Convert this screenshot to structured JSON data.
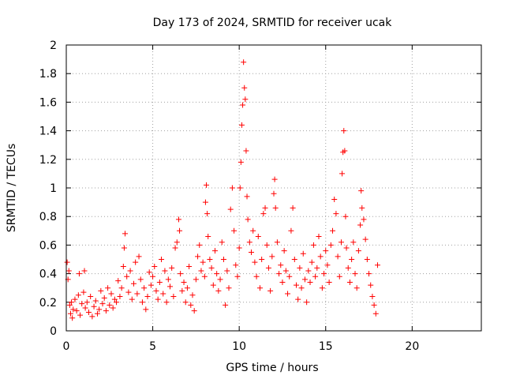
{
  "chart_data": {
    "type": "scatter",
    "title": "Day 173 of 2024, SRMTID for receiver ucak",
    "xlabel": "GPS time / hours",
    "ylabel": "SRMTID / TECUs",
    "xlim": [
      0,
      24
    ],
    "ylim": [
      0,
      2
    ],
    "xticks": [
      0,
      5,
      10,
      15,
      20
    ],
    "yticks": [
      0,
      0.2,
      0.4,
      0.6,
      0.8,
      1,
      1.2,
      1.4,
      1.6,
      1.8,
      2
    ],
    "xtick_labels": [
      "0",
      "5",
      "10",
      "15",
      "20"
    ],
    "ytick_labels": [
      "0",
      "0.2",
      "0.4",
      "0.6",
      "0.8",
      "1",
      "1.2",
      "1.4",
      "1.6",
      "1.8",
      "2"
    ],
    "grid": true,
    "marker": "+",
    "marker_color": "#ff0000",
    "series": [
      {
        "name": "SRMTID",
        "points": [
          [
            0.05,
            0.48
          ],
          [
            0.1,
            0.36
          ],
          [
            0.15,
            0.42
          ],
          [
            0.2,
            0.18
          ],
          [
            0.25,
            0.12
          ],
          [
            0.3,
            0.2
          ],
          [
            0.35,
            0.09
          ],
          [
            0.4,
            0.15
          ],
          [
            0.5,
            0.22
          ],
          [
            0.6,
            0.14
          ],
          [
            0.7,
            0.25
          ],
          [
            0.75,
            0.4
          ],
          [
            0.8,
            0.11
          ],
          [
            0.9,
            0.19
          ],
          [
            1.0,
            0.27
          ],
          [
            1.05,
            0.42
          ],
          [
            1.1,
            0.16
          ],
          [
            1.2,
            0.2
          ],
          [
            1.3,
            0.13
          ],
          [
            1.4,
            0.24
          ],
          [
            1.5,
            0.1
          ],
          [
            1.6,
            0.17
          ],
          [
            1.7,
            0.21
          ],
          [
            1.8,
            0.12
          ],
          [
            1.9,
            0.15
          ],
          [
            2.0,
            0.28
          ],
          [
            2.1,
            0.19
          ],
          [
            2.2,
            0.23
          ],
          [
            2.3,
            0.14
          ],
          [
            2.4,
            0.3
          ],
          [
            2.5,
            0.18
          ],
          [
            2.6,
            0.26
          ],
          [
            2.7,
            0.16
          ],
          [
            2.8,
            0.22
          ],
          [
            2.9,
            0.2
          ],
          [
            3.0,
            0.35
          ],
          [
            3.1,
            0.24
          ],
          [
            3.2,
            0.3
          ],
          [
            3.3,
            0.45
          ],
          [
            3.35,
            0.58
          ],
          [
            3.4,
            0.68
          ],
          [
            3.5,
            0.38
          ],
          [
            3.6,
            0.27
          ],
          [
            3.7,
            0.42
          ],
          [
            3.8,
            0.22
          ],
          [
            3.9,
            0.33
          ],
          [
            4.0,
            0.48
          ],
          [
            4.1,
            0.26
          ],
          [
            4.2,
            0.52
          ],
          [
            4.3,
            0.36
          ],
          [
            4.4,
            0.2
          ],
          [
            4.5,
            0.3
          ],
          [
            4.6,
            0.15
          ],
          [
            4.7,
            0.24
          ],
          [
            4.8,
            0.41
          ],
          [
            4.9,
            0.32
          ],
          [
            5.0,
            0.38
          ],
          [
            5.1,
            0.45
          ],
          [
            5.2,
            0.28
          ],
          [
            5.3,
            0.22
          ],
          [
            5.4,
            0.34
          ],
          [
            5.5,
            0.5
          ],
          [
            5.6,
            0.26
          ],
          [
            5.7,
            0.42
          ],
          [
            5.8,
            0.2
          ],
          [
            5.9,
            0.36
          ],
          [
            6.0,
            0.31
          ],
          [
            6.1,
            0.44
          ],
          [
            6.2,
            0.24
          ],
          [
            6.3,
            0.58
          ],
          [
            6.4,
            0.62
          ],
          [
            6.5,
            0.78
          ],
          [
            6.55,
            0.7
          ],
          [
            6.6,
            0.4
          ],
          [
            6.7,
            0.28
          ],
          [
            6.8,
            0.34
          ],
          [
            6.9,
            0.2
          ],
          [
            7.0,
            0.3
          ],
          [
            7.1,
            0.45
          ],
          [
            7.2,
            0.18
          ],
          [
            7.3,
            0.25
          ],
          [
            7.4,
            0.14
          ],
          [
            7.5,
            0.36
          ],
          [
            7.6,
            0.52
          ],
          [
            7.7,
            0.6
          ],
          [
            7.8,
            0.42
          ],
          [
            7.9,
            0.48
          ],
          [
            8.0,
            0.38
          ],
          [
            8.05,
            0.9
          ],
          [
            8.1,
            1.02
          ],
          [
            8.15,
            0.82
          ],
          [
            8.2,
            0.66
          ],
          [
            8.3,
            0.5
          ],
          [
            8.4,
            0.44
          ],
          [
            8.5,
            0.32
          ],
          [
            8.6,
            0.56
          ],
          [
            8.7,
            0.4
          ],
          [
            8.8,
            0.28
          ],
          [
            8.9,
            0.36
          ],
          [
            9.0,
            0.62
          ],
          [
            9.1,
            0.5
          ],
          [
            9.2,
            0.18
          ],
          [
            9.3,
            0.42
          ],
          [
            9.4,
            0.3
          ],
          [
            9.5,
            0.85
          ],
          [
            9.6,
            1.0
          ],
          [
            9.7,
            0.7
          ],
          [
            9.8,
            0.46
          ],
          [
            9.9,
            0.38
          ],
          [
            10.0,
            0.58
          ],
          [
            10.05,
            1.0
          ],
          [
            10.1,
            1.18
          ],
          [
            10.15,
            1.44
          ],
          [
            10.2,
            1.58
          ],
          [
            10.25,
            1.88
          ],
          [
            10.3,
            1.7
          ],
          [
            10.35,
            1.62
          ],
          [
            10.4,
            1.26
          ],
          [
            10.45,
            0.94
          ],
          [
            10.5,
            0.78
          ],
          [
            10.6,
            0.62
          ],
          [
            10.7,
            0.55
          ],
          [
            10.8,
            0.7
          ],
          [
            10.9,
            0.48
          ],
          [
            11.0,
            0.38
          ],
          [
            11.1,
            0.66
          ],
          [
            11.2,
            0.3
          ],
          [
            11.3,
            0.5
          ],
          [
            11.4,
            0.82
          ],
          [
            11.5,
            0.86
          ],
          [
            11.6,
            0.6
          ],
          [
            11.7,
            0.44
          ],
          [
            11.8,
            0.28
          ],
          [
            11.9,
            0.52
          ],
          [
            12.0,
            0.96
          ],
          [
            12.05,
            1.06
          ],
          [
            12.1,
            0.86
          ],
          [
            12.2,
            0.62
          ],
          [
            12.3,
            0.4
          ],
          [
            12.4,
            0.46
          ],
          [
            12.5,
            0.34
          ],
          [
            12.6,
            0.56
          ],
          [
            12.7,
            0.42
          ],
          [
            12.8,
            0.26
          ],
          [
            12.9,
            0.38
          ],
          [
            13.0,
            0.7
          ],
          [
            13.1,
            0.86
          ],
          [
            13.2,
            0.5
          ],
          [
            13.3,
            0.32
          ],
          [
            13.4,
            0.22
          ],
          [
            13.5,
            0.44
          ],
          [
            13.6,
            0.3
          ],
          [
            13.7,
            0.54
          ],
          [
            13.8,
            0.36
          ],
          [
            13.9,
            0.2
          ],
          [
            14.0,
            0.42
          ],
          [
            14.1,
            0.34
          ],
          [
            14.2,
            0.48
          ],
          [
            14.3,
            0.6
          ],
          [
            14.4,
            0.38
          ],
          [
            14.5,
            0.44
          ],
          [
            14.6,
            0.66
          ],
          [
            14.7,
            0.52
          ],
          [
            14.8,
            0.3
          ],
          [
            14.9,
            0.4
          ],
          [
            15.0,
            0.56
          ],
          [
            15.1,
            0.46
          ],
          [
            15.2,
            0.34
          ],
          [
            15.3,
            0.6
          ],
          [
            15.4,
            0.7
          ],
          [
            15.5,
            0.92
          ],
          [
            15.6,
            0.82
          ],
          [
            15.7,
            0.52
          ],
          [
            15.8,
            0.38
          ],
          [
            15.9,
            0.62
          ],
          [
            15.95,
            1.1
          ],
          [
            16.0,
            1.25
          ],
          [
            16.05,
            1.4
          ],
          [
            16.1,
            1.26
          ],
          [
            16.15,
            0.8
          ],
          [
            16.2,
            0.58
          ],
          [
            16.3,
            0.44
          ],
          [
            16.4,
            0.34
          ],
          [
            16.5,
            0.5
          ],
          [
            16.6,
            0.62
          ],
          [
            16.7,
            0.4
          ],
          [
            16.8,
            0.3
          ],
          [
            16.9,
            0.56
          ],
          [
            17.0,
            0.74
          ],
          [
            17.05,
            0.98
          ],
          [
            17.1,
            0.86
          ],
          [
            17.2,
            0.78
          ],
          [
            17.3,
            0.64
          ],
          [
            17.4,
            0.5
          ],
          [
            17.5,
            0.4
          ],
          [
            17.6,
            0.32
          ],
          [
            17.7,
            0.24
          ],
          [
            17.8,
            0.18
          ],
          [
            17.9,
            0.12
          ],
          [
            18.0,
            0.46
          ]
        ]
      }
    ]
  }
}
